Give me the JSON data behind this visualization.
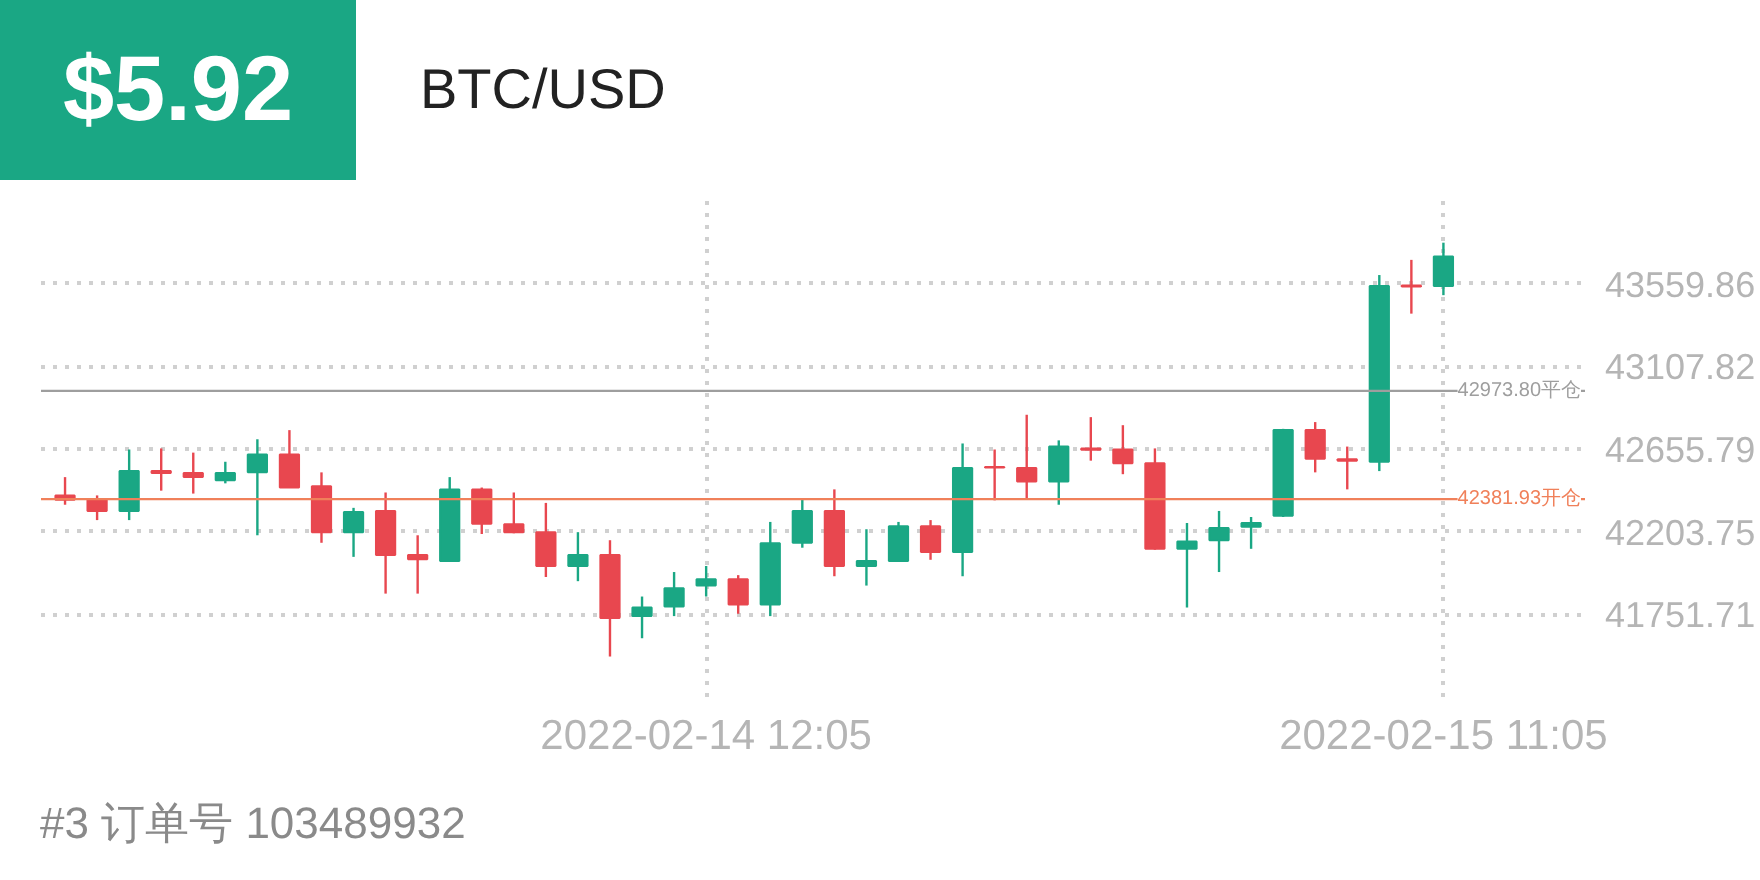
{
  "chart_data": {
    "type": "candlestick",
    "title": "BTC/USD",
    "annotations": [
      "$5.92",
      "#3 订单号 103489932"
    ],
    "x": [
      "2022-02-13T16:05",
      "2022-02-13T17:05",
      "2022-02-13T18:05",
      "2022-02-13T19:05",
      "2022-02-13T20:05",
      "2022-02-13T21:05",
      "2022-02-13T22:05",
      "2022-02-13T23:05",
      "2022-02-14T00:05",
      "2022-02-14T01:05",
      "2022-02-14T02:05",
      "2022-02-14T03:05",
      "2022-02-14T04:05",
      "2022-02-14T05:05",
      "2022-02-14T06:05",
      "2022-02-14T07:05",
      "2022-02-14T08:05",
      "2022-02-14T09:05",
      "2022-02-14T10:05",
      "2022-02-14T11:05",
      "2022-02-14T12:05",
      "2022-02-14T13:05",
      "2022-02-14T14:05",
      "2022-02-14T15:05",
      "2022-02-14T16:05",
      "2022-02-14T17:05",
      "2022-02-14T18:05",
      "2022-02-14T19:05",
      "2022-02-14T20:05",
      "2022-02-14T21:05",
      "2022-02-14T22:05",
      "2022-02-14T23:05",
      "2022-02-15T00:05",
      "2022-02-15T01:05",
      "2022-02-15T02:05",
      "2022-02-15T03:05",
      "2022-02-15T04:05",
      "2022-02-15T05:05",
      "2022-02-15T06:05",
      "2022-02-15T07:05",
      "2022-02-15T08:05",
      "2022-02-15T09:05",
      "2022-02-15T10:05",
      "2022-02-15T11:05"
    ],
    "ohlc": [
      [
        42402,
        42502,
        42351,
        42378
      ],
      [
        42381,
        42402,
        42267,
        42317
      ],
      [
        42317,
        42653,
        42267,
        42535
      ],
      [
        42535,
        42659,
        42428,
        42525
      ],
      [
        42525,
        42636,
        42412,
        42502
      ],
      [
        42485,
        42586,
        42468,
        42525
      ],
      [
        42528,
        42709,
        42184,
        42626
      ],
      [
        42626,
        42759,
        42445,
        42445
      ],
      [
        42452,
        42528,
        42143,
        42201
      ],
      [
        42201,
        42334,
        42066,
        42311
      ],
      [
        42317,
        42418,
        41865,
        42076
      ],
      [
        42076,
        42184,
        41865,
        42053
      ],
      [
        42043,
        42502,
        42043,
        42435
      ],
      [
        42435,
        42445,
        42191,
        42247
      ],
      [
        42244,
        42418,
        42195,
        42201
      ],
      [
        42201,
        42361,
        41956,
        42016
      ],
      [
        42016,
        42201,
        41933,
        42076
      ],
      [
        42076,
        42157,
        41521,
        41732
      ],
      [
        41742,
        41849,
        41621,
        41789
      ],
      [
        41795,
        41983,
        41742,
        41895
      ],
      [
        41909,
        42016,
        41849,
        41943
      ],
      [
        41943,
        41966,
        41755,
        41805
      ],
      [
        41805,
        42257,
        41742,
        42140
      ],
      [
        42143,
        42385,
        42116,
        42317
      ],
      [
        42317,
        42435,
        41960,
        42016
      ],
      [
        42016,
        42217,
        41909,
        42043
      ],
      [
        42043,
        42257,
        42043,
        42234
      ],
      [
        42234,
        42267,
        42050,
        42093
      ],
      [
        42093,
        42686,
        41960,
        42552
      ],
      [
        42558,
        42653,
        42375,
        42555
      ],
      [
        42552,
        42843,
        42378,
        42478
      ],
      [
        42478,
        42703,
        42351,
        42669
      ],
      [
        42659,
        42830,
        42592,
        42652
      ],
      [
        42653,
        42786,
        42518,
        42578
      ],
      [
        42578,
        42659,
        42105,
        42110
      ],
      [
        42110,
        42251,
        41789,
        42150
      ],
      [
        42157,
        42317,
        41983,
        42224
      ],
      [
        42231,
        42284,
        42110,
        42251
      ],
      [
        42291,
        42766,
        42284,
        42759
      ],
      [
        42759,
        42803,
        42528,
        42603
      ],
      [
        42600,
        42669,
        42435,
        42592
      ],
      [
        42586,
        43607,
        42535,
        43547
      ],
      [
        43550,
        43690,
        43396,
        43544
      ],
      [
        43547,
        43784,
        43497,
        43708
      ]
    ],
    "colors": [
      "#e8474f",
      "#e8474f",
      "#1aa784",
      "#e8474f",
      "#e8474f",
      "#1aa784",
      "#1aa784",
      "#e8474f",
      "#e8474f",
      "#1aa784",
      "#e8474f",
      "#e8474f",
      "#1aa784",
      "#e8474f",
      "#e8474f",
      "#e8474f",
      "#1aa784",
      "#e8474f",
      "#1aa784",
      "#1aa784",
      "#1aa784",
      "#e8474f",
      "#1aa784",
      "#1aa784",
      "#e8474f",
      "#1aa784",
      "#1aa784",
      "#e8474f",
      "#1aa784",
      "#e8474f",
      "#e8474f",
      "#1aa784",
      "#e8474f",
      "#e8474f",
      "#e8474f",
      "#1aa784",
      "#1aa784",
      "#1aa784",
      "#1aa784",
      "#e8474f",
      "#e8474f",
      "#1aa784",
      "#e8474f",
      "#1aa784"
    ],
    "xlim": [
      "2022-02-13T15:20",
      "2022-02-15T15:30"
    ],
    "xticks": [
      {
        "value": "2022-02-14T12:05",
        "label": "2022-02-14 12:05"
      },
      {
        "value": "2022-02-15T11:05",
        "label": "2022-02-15 11:05"
      }
    ],
    "ylim": [
      41299.67,
      44011.9
    ],
    "yticks": [
      41751.71,
      42203.75,
      42655.79,
      43107.82,
      43559.86
    ],
    "ref_lines": [
      {
        "axis": "y",
        "value": 42973.8,
        "label": "42973.80平仓",
        "color": "#9e9e9e"
      },
      {
        "axis": "y",
        "value": 42381.93,
        "label": "42381.93开仓",
        "color": "#f0805a"
      }
    ],
    "grid": true
  }
}
